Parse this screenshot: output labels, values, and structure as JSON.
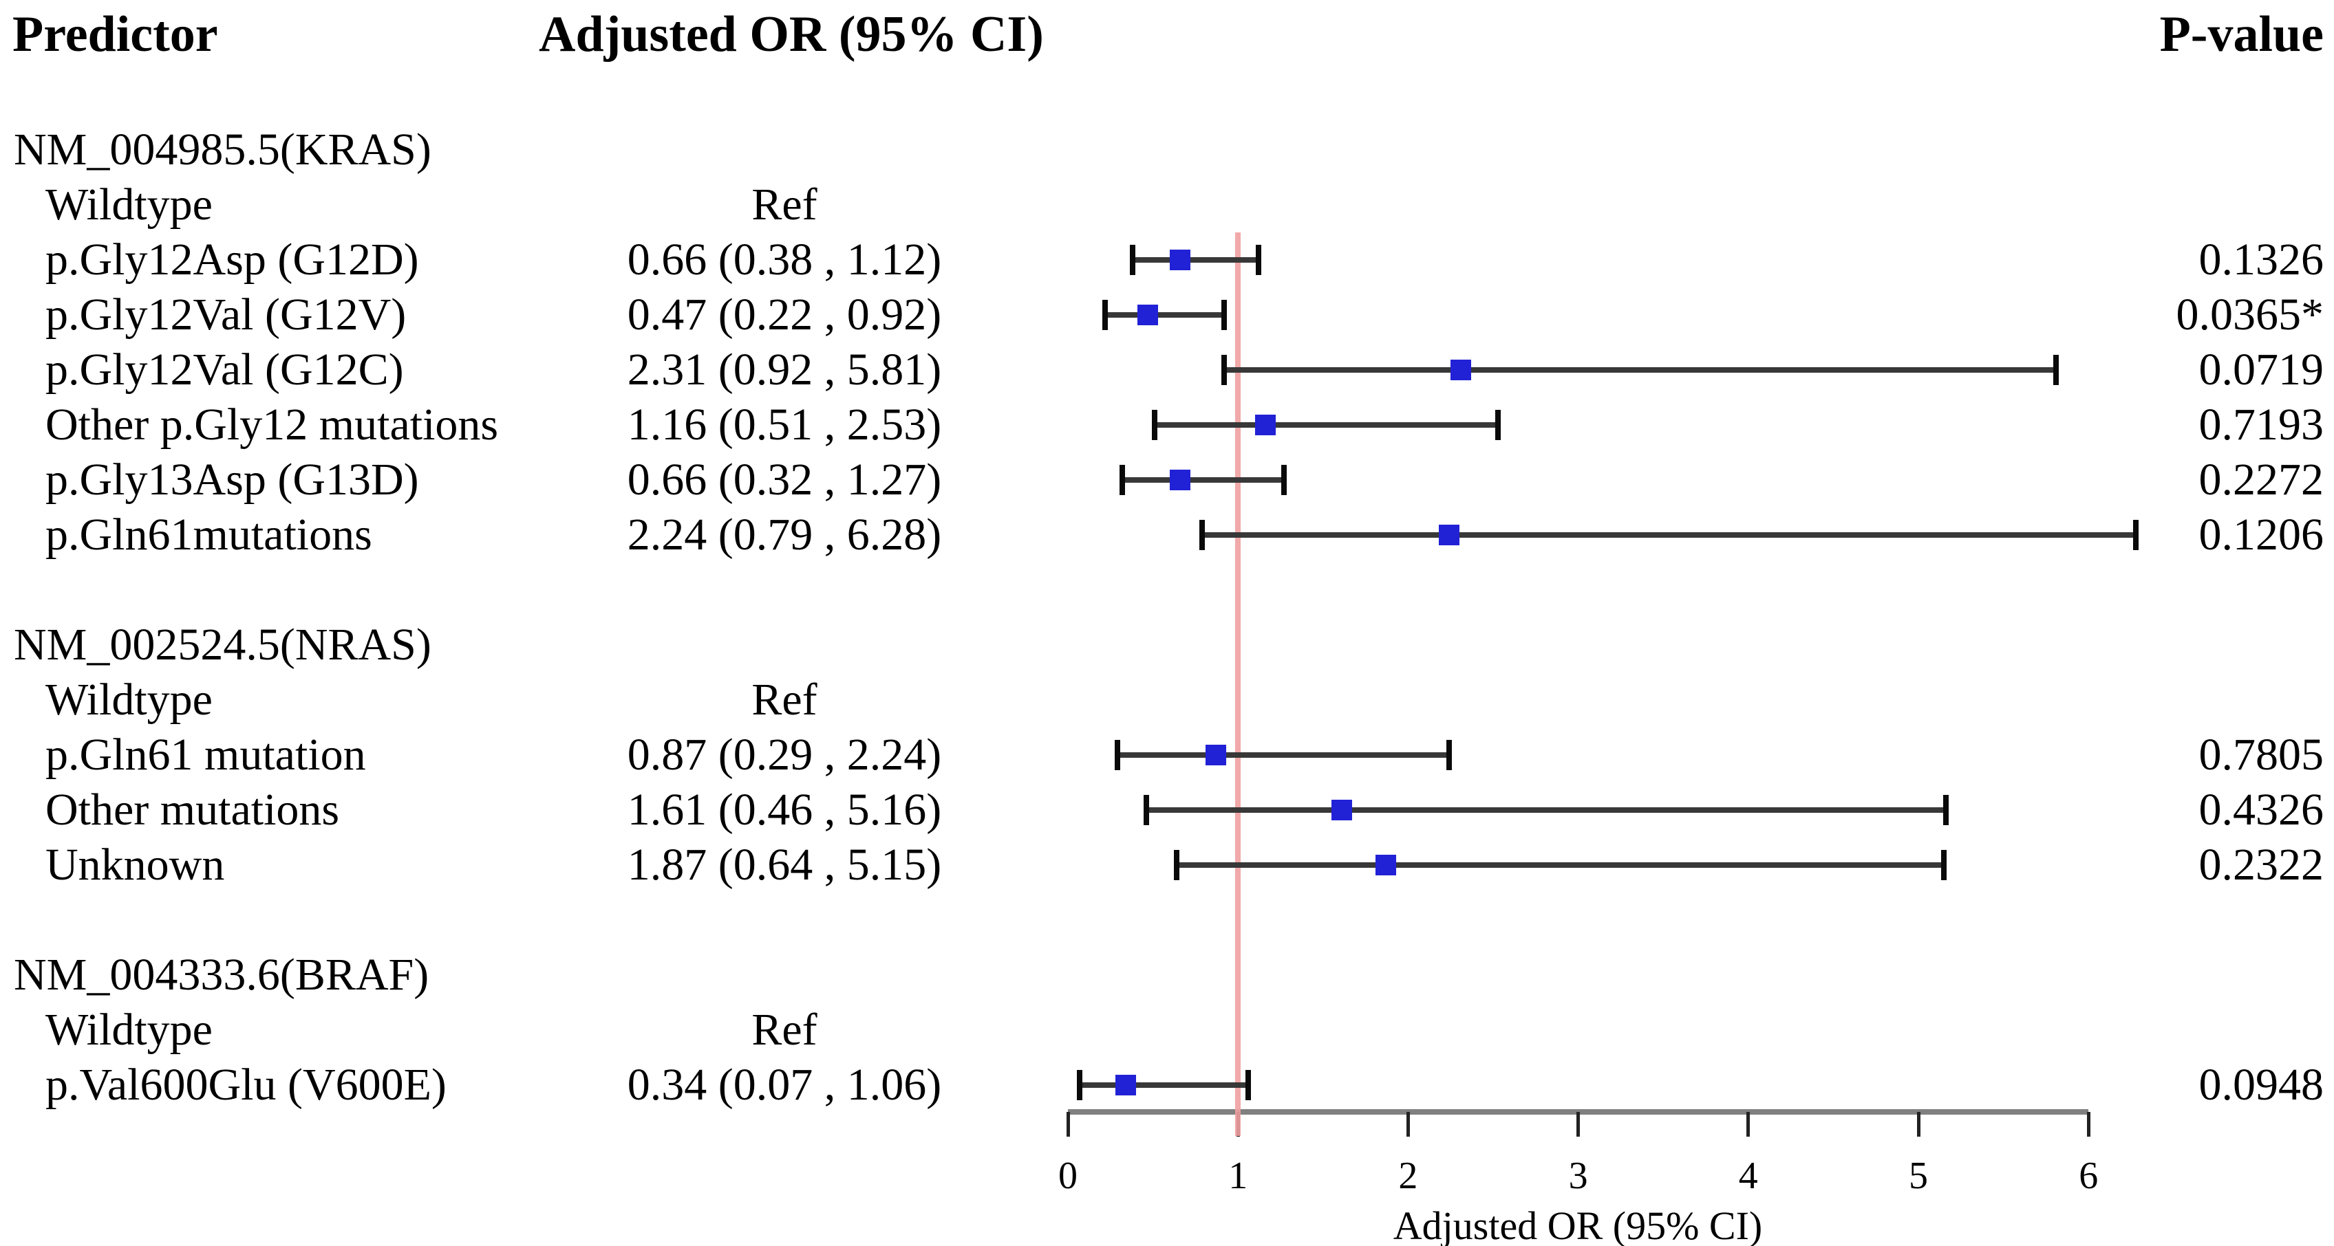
{
  "chart_data": {
    "type": "scatter",
    "subtype": "forest-plot",
    "columns": {
      "predictor": "Predictor",
      "or": "Adjusted OR (95% CI)",
      "p": "P-value"
    },
    "xlabel": "Adjusted OR (95% CI)",
    "axis": {
      "min": 0,
      "max": 6,
      "ticks": [
        0,
        1,
        2,
        3,
        4,
        5,
        6
      ],
      "grid": false
    },
    "reference_line": 1,
    "colors": {
      "marker": "#2121d6",
      "ci_line": "#383838",
      "ci_cap": "#0a0a0a",
      "reference_line": "#f0a0a0",
      "axis_line": "#808080",
      "text": "#000000",
      "background": "#ffffff"
    },
    "rows": [
      {
        "type": "group",
        "label": "NM_004985.5(KRAS)"
      },
      {
        "type": "item",
        "label": "Wildtype",
        "or_text": "Ref"
      },
      {
        "type": "item",
        "label": "p.Gly12Asp (G12D)",
        "or_text": "0.66 (0.38 , 1.12)",
        "p_text": "0.1326",
        "est": 0.66,
        "lo": 0.38,
        "hi": 1.12
      },
      {
        "type": "item",
        "label": "p.Gly12Val (G12V)",
        "or_text": "0.47 (0.22 , 0.92)",
        "p_text": "0.0365*",
        "est": 0.47,
        "lo": 0.22,
        "hi": 0.92
      },
      {
        "type": "item",
        "label": "p.Gly12Val (G12C)",
        "or_text": "2.31 (0.92 , 5.81)",
        "p_text": "0.0719",
        "est": 2.31,
        "lo": 0.92,
        "hi": 5.81
      },
      {
        "type": "item",
        "label": "Other p.Gly12 mutations",
        "or_text": "1.16 (0.51 , 2.53)",
        "p_text": "0.7193",
        "est": 1.16,
        "lo": 0.51,
        "hi": 2.53
      },
      {
        "type": "item",
        "label": "p.Gly13Asp (G13D)",
        "or_text": "0.66 (0.32 , 1.27)",
        "p_text": "0.2272",
        "est": 0.66,
        "lo": 0.32,
        "hi": 1.27
      },
      {
        "type": "item",
        "label": "p.Gln61mutations",
        "or_text": "2.24 (0.79 , 6.28)",
        "p_text": "0.1206",
        "est": 2.24,
        "lo": 0.79,
        "hi": 6.28
      },
      {
        "type": "blank"
      },
      {
        "type": "group",
        "label": "NM_002524.5(NRAS)"
      },
      {
        "type": "item",
        "label": "Wildtype",
        "or_text": "Ref"
      },
      {
        "type": "item",
        "label": "p.Gln61 mutation",
        "or_text": "0.87 (0.29 , 2.24)",
        "p_text": "0.7805",
        "est": 0.87,
        "lo": 0.29,
        "hi": 2.24
      },
      {
        "type": "item",
        "label": "Other mutations",
        "or_text": "1.61 (0.46 , 5.16)",
        "p_text": "0.4326",
        "est": 1.61,
        "lo": 0.46,
        "hi": 5.16
      },
      {
        "type": "item",
        "label": "Unknown",
        "or_text": "1.87 (0.64 , 5.15)",
        "p_text": "0.2322",
        "est": 1.87,
        "lo": 0.64,
        "hi": 5.15
      },
      {
        "type": "blank"
      },
      {
        "type": "group",
        "label": "NM_004333.6(BRAF)"
      },
      {
        "type": "item",
        "label": "Wildtype",
        "or_text": "Ref"
      },
      {
        "type": "item",
        "label": "p.Val600Glu (V600E)",
        "or_text": "0.34 (0.07 , 1.06)",
        "p_text": "0.0948",
        "est": 0.34,
        "lo": 0.07,
        "hi": 1.06
      }
    ]
  }
}
